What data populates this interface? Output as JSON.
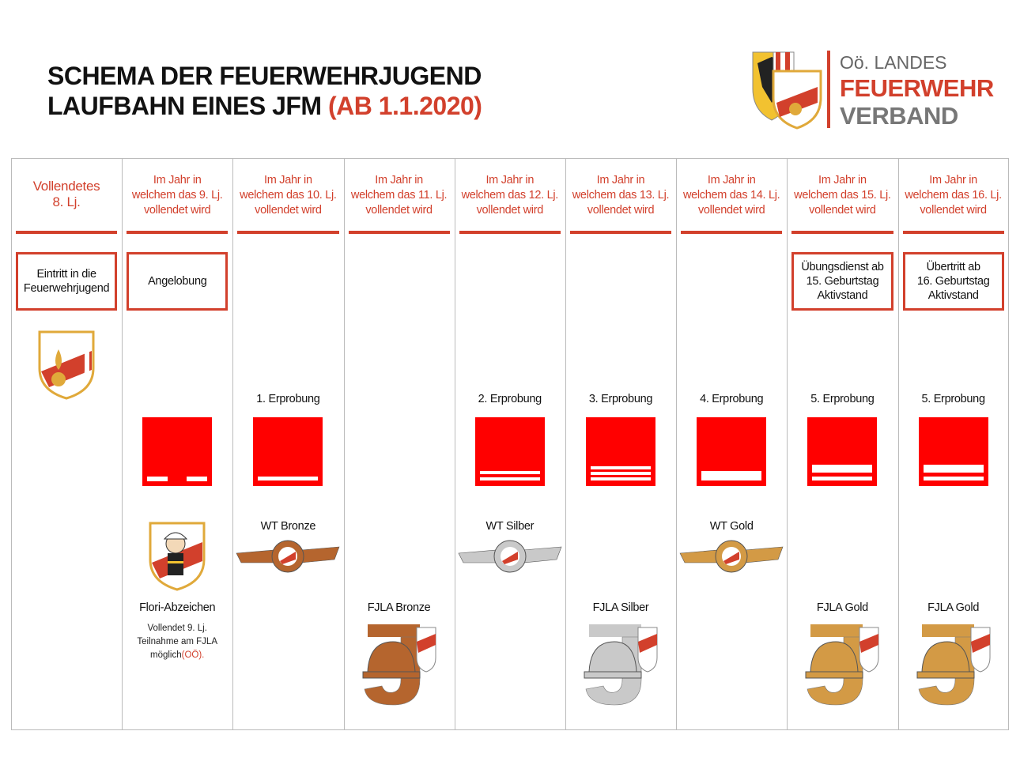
{
  "header": {
    "title_line1": "SCHEMA DER FEUERWEHRJUGEND",
    "title_line2": "LAUFBAHN EINES JFM",
    "title_highlight": "(AB 1.1.2020)"
  },
  "logo": {
    "line1": "Oö. LANDES",
    "line2": "FEUERWEHR",
    "line3": "VERBAND"
  },
  "columns": [
    {
      "heading": [
        "Vollendetes",
        "8. Lj."
      ],
      "box": [
        "Eintritt in die",
        "Feuerwehrjugend"
      ]
    },
    {
      "heading": [
        "Im Jahr in",
        "welchem das 9. Lj.",
        "vollendet wird"
      ],
      "box": [
        "Angelobung"
      ],
      "badge": "Flori-Abzeichen",
      "note": [
        "Vollendet 9. Lj.",
        "Teilnahme am FJLA",
        "möglich"
      ],
      "note_highlight": "(OÖ)."
    },
    {
      "heading": [
        "Im Jahr in",
        "welchem das 10. Lj.",
        "vollendet wird"
      ],
      "erprobung": "1. Erprobung",
      "wt": "WT Bronze"
    },
    {
      "heading": [
        "Im Jahr in",
        "welchem das 11. Lj.",
        "vollendet wird"
      ],
      "fjla": "FJLA Bronze"
    },
    {
      "heading": [
        "Im Jahr in",
        "welchem das 12. Lj.",
        "vollendet wird"
      ],
      "erprobung": "2. Erprobung",
      "wt": "WT Silber"
    },
    {
      "heading": [
        "Im Jahr in",
        "welchem das 13. Lj.",
        "vollendet wird"
      ],
      "erprobung": "3. Erprobung",
      "fjla": "FJLA Silber"
    },
    {
      "heading": [
        "Im Jahr in",
        "welchem das 14. Lj.",
        "vollendet wird"
      ],
      "erprobung": "4. Erprobung",
      "wt": "WT Gold"
    },
    {
      "heading": [
        "Im Jahr in",
        "welchem das 15. Lj.",
        "vollendet wird"
      ],
      "box": [
        "Übungsdienst ab",
        "15. Geburtstag",
        "Aktivstand"
      ],
      "erprobung": "5. Erprobung",
      "fjla": "FJLA Gold"
    },
    {
      "heading": [
        "Im Jahr in",
        "welchem das 16. Lj.",
        "vollendet wird"
      ],
      "box": [
        "Übertritt ab",
        "16. Geburtstag",
        "Aktivstand"
      ],
      "erprobung": "5. Erprobung",
      "fjla": "FJLA Gold"
    }
  ]
}
